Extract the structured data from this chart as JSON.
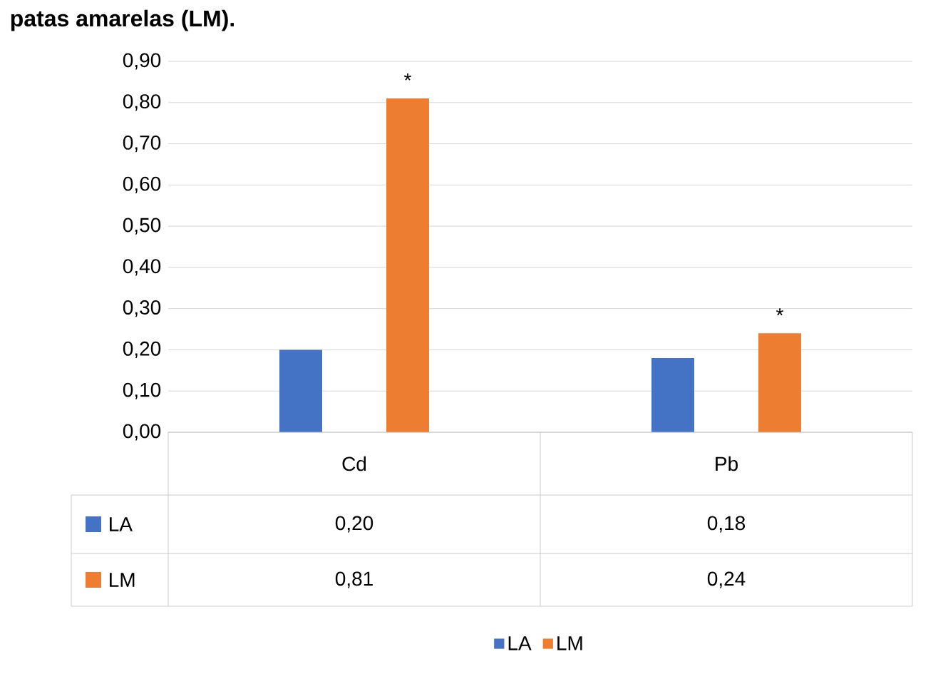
{
  "chart_data": {
    "type": "bar",
    "title": "patas amarelas (LM).",
    "categories": [
      "Cd",
      "Pb"
    ],
    "series": [
      {
        "name": "LA",
        "color": "#4472c4",
        "values": [
          0.2,
          0.18
        ],
        "value_labels": [
          "0,20",
          "0,18"
        ]
      },
      {
        "name": "LM",
        "color": "#ed7d31",
        "values": [
          0.81,
          0.24
        ],
        "value_labels": [
          "0,81",
          "0,24"
        ]
      }
    ],
    "ylim": [
      0,
      0.9
    ],
    "yticks": [
      {
        "value": 0,
        "label": "0,00"
      },
      {
        "value": 0.1,
        "label": "0,10"
      },
      {
        "value": 0.2,
        "label": "0,20"
      },
      {
        "value": 0.3,
        "label": "0,30"
      },
      {
        "value": 0.4,
        "label": "0,40"
      },
      {
        "value": 0.5,
        "label": "0,50"
      },
      {
        "value": 0.6,
        "label": "0,60"
      },
      {
        "value": 0.7,
        "label": "0,70"
      },
      {
        "value": 0.8,
        "label": "0,80"
      },
      {
        "value": 0.9,
        "label": "0,90"
      }
    ],
    "grid": "y",
    "legend": "bottom",
    "annotations": [
      "*",
      "*"
    ]
  }
}
